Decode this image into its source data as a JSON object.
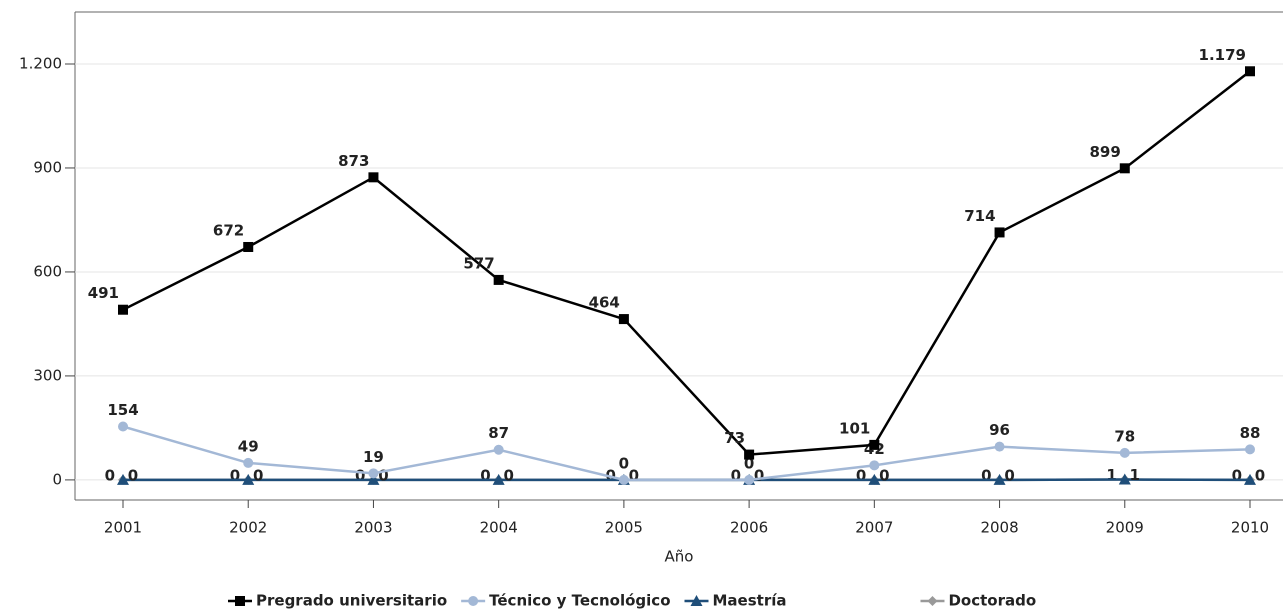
{
  "chart_data": {
    "type": "line",
    "x_label": "Año",
    "categories": [
      "2001",
      "2002",
      "2003",
      "2004",
      "2005",
      "2006",
      "2007",
      "2008",
      "2009",
      "2010"
    ],
    "series": [
      {
        "name": "Pregrado universitario",
        "color": "#000000",
        "marker": "square",
        "values": [
          491,
          672,
          873,
          577,
          464,
          73,
          101,
          714,
          899,
          1179
        ],
        "value_labels": [
          "491",
          "672",
          "873",
          "577",
          "464",
          "73",
          "101",
          "714",
          "899",
          "1.179"
        ]
      },
      {
        "name": "Técnico y Tecnológico",
        "color": "#a3b8d6",
        "marker": "circle",
        "values": [
          154,
          49,
          19,
          87,
          0,
          0,
          42,
          96,
          78,
          88
        ]
      },
      {
        "name": "Maestría",
        "color": "#1f4e79",
        "marker": "triangle",
        "values": [
          0,
          0,
          0,
          0,
          0,
          0,
          0,
          0,
          1,
          0
        ]
      },
      {
        "name": "Doctorado",
        "color": "#999999",
        "marker": "diamond",
        "values": [
          0,
          0,
          0,
          0,
          0,
          0,
          0,
          0,
          1,
          0
        ]
      }
    ],
    "ylim": [
      -58,
      1350
    ],
    "yticks": [
      0,
      300,
      600,
      900,
      {
        "value": 1200,
        "label": "1.200"
      }
    ],
    "grid": true
  }
}
